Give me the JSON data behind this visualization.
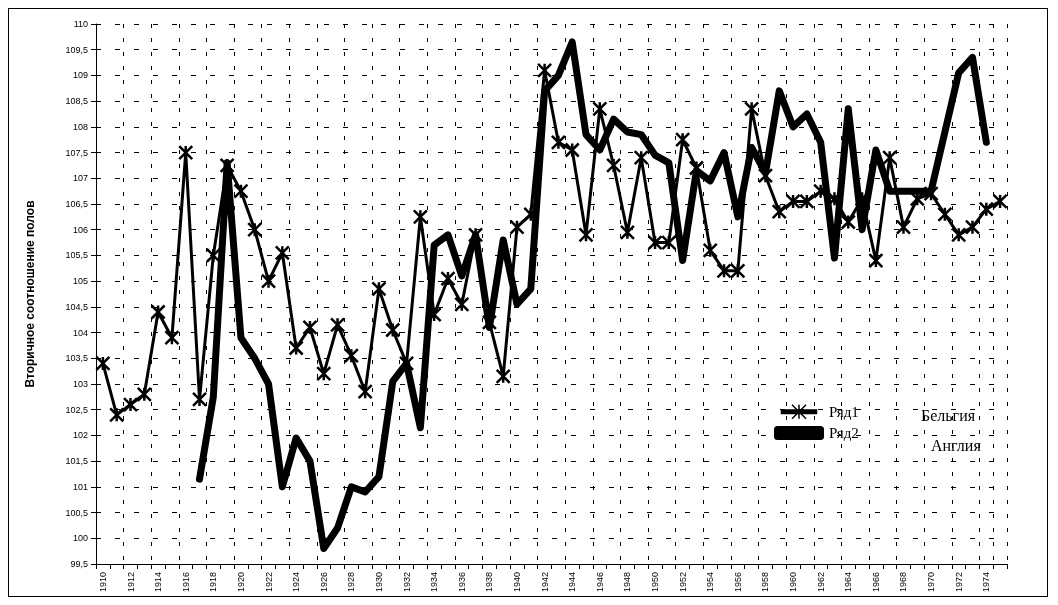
{
  "chart_data": {
    "type": "line",
    "ylabel": "Вторичное соотношение полов",
    "categories": [
      "1910",
      null,
      "1912",
      null,
      "1914",
      null,
      "1916",
      null,
      "1918",
      null,
      "1920",
      null,
      "1922",
      null,
      "1924",
      null,
      "1926",
      null,
      "1928",
      null,
      "1930",
      null,
      "1932",
      null,
      "1934",
      null,
      "1936",
      null,
      "1938",
      null,
      "1940",
      null,
      "1942",
      null,
      "1944",
      null,
      "1946",
      null,
      "1948",
      null,
      "1950",
      null,
      "1952",
      null,
      "1954",
      null,
      "1956",
      null,
      "1958",
      null,
      "1960",
      null,
      "1962",
      null,
      "1964",
      null,
      "1966",
      null,
      "1968",
      null,
      "1970",
      null,
      "1972",
      null,
      "1974",
      null
    ],
    "series": [
      {
        "name": "Ряд1",
        "color": "#000000",
        "marker": "cross",
        "values": [
          103.4,
          102.4,
          102.6,
          102.8,
          104.4,
          103.9,
          107.5,
          102.7,
          105.5,
          107.25,
          106.75,
          106.0,
          105.0,
          105.55,
          103.7,
          104.1,
          103.2,
          104.15,
          103.55,
          102.85,
          104.85,
          104.05,
          103.4,
          106.25,
          104.35,
          105.05,
          104.55,
          105.9,
          104.2,
          103.15,
          106.05,
          106.3,
          109.1,
          107.7,
          107.55,
          105.9,
          108.35,
          107.25,
          105.95,
          107.4,
          105.75,
          105.75,
          107.75,
          107.2,
          105.6,
          105.2,
          105.2,
          108.35,
          107.05,
          106.35,
          106.55,
          106.55,
          106.75,
          106.6,
          106.15,
          106.6,
          105.4,
          107.4,
          106.05,
          106.6,
          106.7,
          106.3,
          105.9,
          106.05,
          106.4,
          106.55
        ]
      },
      {
        "name": "Ряд2",
        "color": "#000000",
        "marker": "none",
        "values": [
          null,
          null,
          null,
          null,
          null,
          null,
          null,
          101.15,
          102.75,
          107.3,
          103.9,
          103.5,
          103.0,
          101.0,
          101.95,
          101.5,
          99.8,
          100.2,
          101.0,
          100.9,
          101.2,
          103.05,
          103.4,
          102.15,
          105.7,
          105.9,
          105.1,
          105.9,
          104.1,
          105.8,
          104.55,
          104.85,
          108.7,
          109.0,
          109.65,
          107.85,
          107.55,
          108.15,
          107.9,
          107.85,
          107.45,
          107.3,
          105.4,
          107.15,
          106.95,
          107.5,
          106.25,
          107.6,
          107.1,
          108.7,
          108.0,
          108.25,
          107.7,
          105.45,
          108.35,
          106.0,
          107.55,
          106.75,
          106.75,
          106.75,
          106.75,
          107.9,
          109.05,
          109.35,
          107.7,
          null
        ]
      }
    ],
    "ylim": [
      99.5,
      110
    ],
    "yticks": [
      {
        "value": 99.5,
        "label": "99,5"
      },
      100,
      {
        "value": 100.5,
        "label": "100,5"
      },
      101,
      {
        "value": 101.5,
        "label": "101,5"
      },
      102,
      {
        "value": 102.5,
        "label": "102,5"
      },
      103,
      {
        "value": 103.5,
        "label": "103,5"
      },
      104,
      {
        "value": 104.5,
        "label": "104,5"
      },
      105,
      {
        "value": 105.5,
        "label": "105,5"
      },
      106,
      {
        "value": 106.5,
        "label": "106,5"
      },
      107,
      {
        "value": 107.5,
        "label": "107,5"
      },
      108,
      {
        "value": 108.5,
        "label": "108,5"
      },
      109,
      {
        "value": 109.5,
        "label": "109,5"
      },
      110
    ],
    "grid": true,
    "legend": "bottom right",
    "line_style": "solid",
    "annotations": [
      "Бельгия",
      "Англия"
    ]
  }
}
